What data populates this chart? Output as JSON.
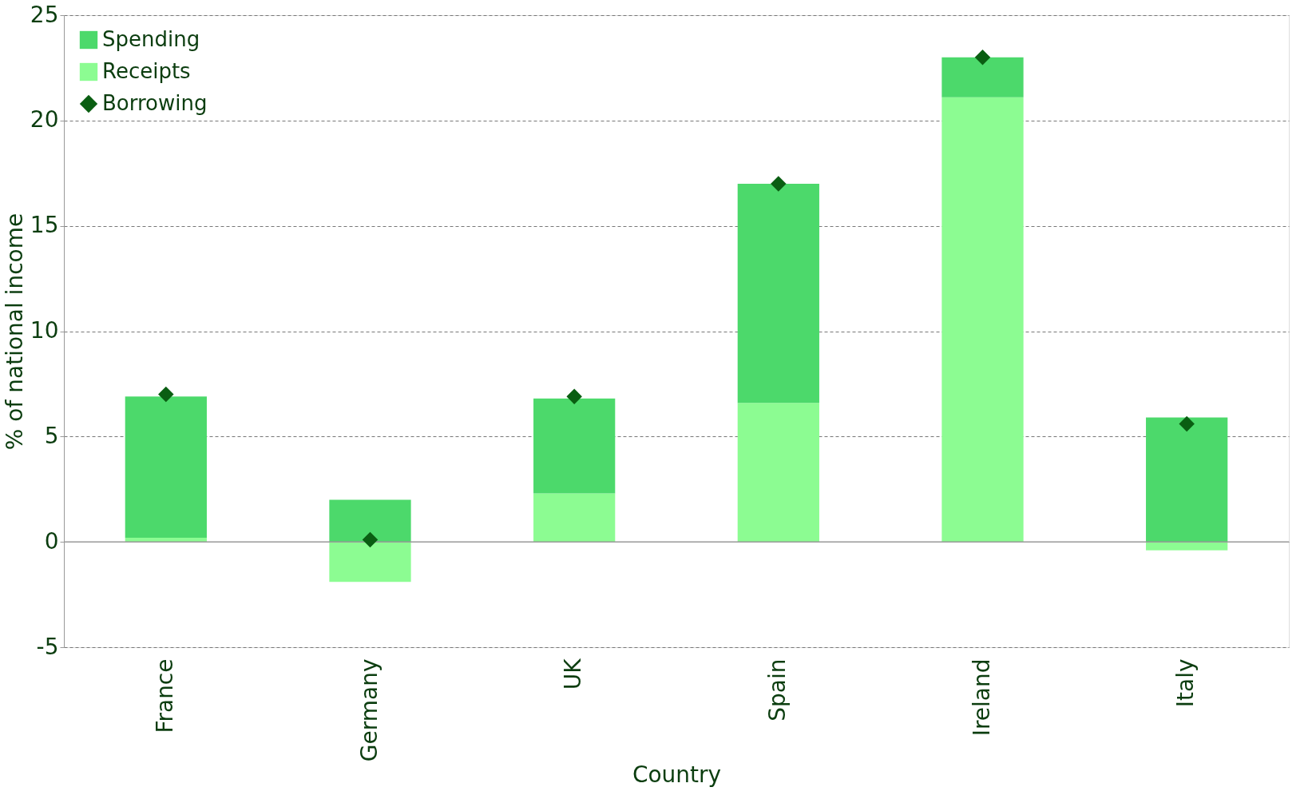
{
  "chart_data": {
    "type": "bar",
    "stacked": true,
    "xlabel": "Country",
    "ylabel": "% of national income",
    "categories": [
      "France",
      "Germany",
      "UK",
      "Spain",
      "Ireland",
      "Italy"
    ],
    "series": [
      {
        "name": "Receipts",
        "color": "#8cfc92",
        "values": [
          0.2,
          -1.9,
          2.3,
          6.6,
          21.1,
          -0.4
        ]
      },
      {
        "name": "Spending",
        "color": "#4cd96b",
        "values": [
          6.7,
          2.0,
          4.5,
          10.4,
          1.9,
          5.9
        ]
      },
      {
        "name": "Borrowing",
        "type": "scatter",
        "marker": "diamond",
        "color": "#0a5e12",
        "values": [
          7.0,
          0.1,
          6.9,
          17.0,
          23.0,
          5.6
        ]
      }
    ],
    "ylim": [
      -5,
      25
    ],
    "yticks": [
      -5,
      0,
      5,
      10,
      15,
      20,
      25
    ],
    "grid": "y",
    "legend": "top left"
  }
}
